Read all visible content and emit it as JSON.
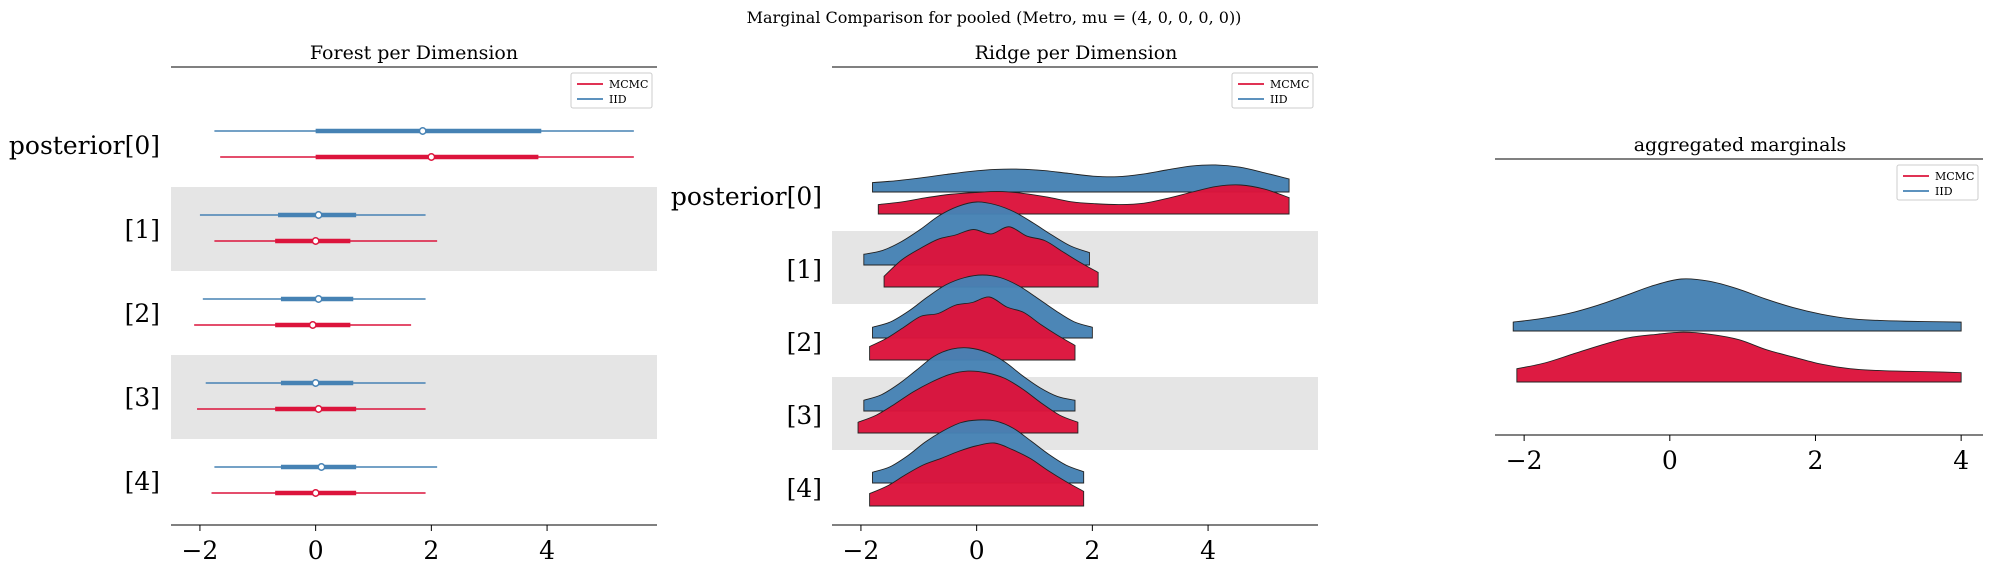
{
  "figure": {
    "suptitle": "Marginal Comparison for pooled (Metro, mu = (4, 0, 0, 0, 0))"
  },
  "colors": {
    "mcmc": "#dc143c",
    "iid": "#4682b4",
    "band": "#e5e5e5",
    "axis": "#000000"
  },
  "chart_data": [
    {
      "type": "forest",
      "title": "Forest per Dimension",
      "xlim": [
        -2.5,
        5.9
      ],
      "xticks": [
        -2,
        0,
        2,
        4
      ],
      "legend": {
        "placement": "top-right",
        "entries": [
          "MCMC",
          "IID"
        ]
      },
      "dimensions": [
        {
          "label": "posterior[0]",
          "IID": {
            "hdi94": [
              -1.75,
              5.5
            ],
            "hdi50": [
              0.0,
              3.9
            ],
            "point": 1.85
          },
          "MCMC": {
            "hdi94": [
              -1.65,
              5.5
            ],
            "hdi50": [
              0.0,
              3.85
            ],
            "point": 2.0
          }
        },
        {
          "label": "[1]",
          "IID": {
            "hdi94": [
              -2.0,
              1.9
            ],
            "hdi50": [
              -0.65,
              0.7
            ],
            "point": 0.05
          },
          "MCMC": {
            "hdi94": [
              -1.75,
              2.1
            ],
            "hdi50": [
              -0.7,
              0.6
            ],
            "point": 0.0
          }
        },
        {
          "label": "[2]",
          "IID": {
            "hdi94": [
              -1.95,
              1.9
            ],
            "hdi50": [
              -0.6,
              0.65
            ],
            "point": 0.05
          },
          "MCMC": {
            "hdi94": [
              -2.1,
              1.65
            ],
            "hdi50": [
              -0.7,
              0.6
            ],
            "point": -0.05
          }
        },
        {
          "label": "[3]",
          "IID": {
            "hdi94": [
              -1.9,
              1.9
            ],
            "hdi50": [
              -0.6,
              0.65
            ],
            "point": 0.0
          },
          "MCMC": {
            "hdi94": [
              -2.05,
              1.9
            ],
            "hdi50": [
              -0.7,
              0.7
            ],
            "point": 0.05
          }
        },
        {
          "label": "[4]",
          "IID": {
            "hdi94": [
              -1.75,
              2.1
            ],
            "hdi50": [
              -0.6,
              0.7
            ],
            "point": 0.1
          },
          "MCMC": {
            "hdi94": [
              -1.8,
              1.9
            ],
            "hdi50": [
              -0.7,
              0.7
            ],
            "point": 0.0
          }
        }
      ]
    },
    {
      "type": "ridge",
      "title": "Ridge per Dimension",
      "xlim": [
        -2.5,
        5.9
      ],
      "xticks": [
        -2,
        0,
        2,
        4
      ],
      "legend": {
        "placement": "top-right",
        "entries": [
          "MCMC",
          "IID"
        ]
      },
      "dimensions": [
        {
          "label": "posterior[0]",
          "IID": {
            "range": [
              -1.8,
              5.4
            ],
            "density": [
              0.05,
              0.12,
              0.22,
              0.34,
              0.45,
              0.52,
              0.53,
              0.48,
              0.38,
              0.28,
              0.26,
              0.35,
              0.5,
              0.64,
              0.68,
              0.6,
              0.4,
              0.18
            ]
          },
          "MCMC": {
            "range": [
              -1.7,
              5.4
            ],
            "density": [
              0.05,
              0.15,
              0.3,
              0.42,
              0.48,
              0.52,
              0.45,
              0.32,
              0.15,
              0.08,
              0.05,
              0.1,
              0.28,
              0.5,
              0.7,
              0.75,
              0.6,
              0.3
            ]
          }
        },
        {
          "label": "[1]",
          "IID": {
            "range": [
              -1.95,
              1.95
            ],
            "density": [
              0.05,
              0.12,
              0.28,
              0.5,
              0.75,
              0.92,
              1.0,
              0.95,
              0.82,
              0.62,
              0.4,
              0.2,
              0.08
            ]
          },
          "MCMC": {
            "range": [
              -1.6,
              2.1
            ],
            "density": [
              0.05,
              0.35,
              0.55,
              0.72,
              0.8,
              0.9,
              0.82,
              0.95,
              0.78,
              0.7,
              0.5,
              0.3,
              0.12
            ]
          }
        },
        {
          "label": "[2]",
          "IID": {
            "range": [
              -1.8,
              2.0
            ],
            "density": [
              0.05,
              0.15,
              0.35,
              0.6,
              0.82,
              0.95,
              1.0,
              0.95,
              0.8,
              0.58,
              0.35,
              0.15,
              0.05
            ]
          },
          "MCMC": {
            "range": [
              -1.85,
              1.7
            ],
            "density": [
              0.1,
              0.25,
              0.45,
              0.65,
              0.7,
              0.85,
              0.9,
              1.0,
              0.82,
              0.72,
              0.5,
              0.3,
              0.12
            ]
          }
        },
        {
          "label": "[3]",
          "IID": {
            "range": [
              -1.95,
              1.7
            ],
            "density": [
              0.05,
              0.15,
              0.35,
              0.6,
              0.85,
              0.98,
              1.0,
              0.92,
              0.75,
              0.5,
              0.28,
              0.12,
              0.05
            ]
          },
          "MCMC": {
            "range": [
              -2.05,
              1.75
            ],
            "density": [
              0.05,
              0.18,
              0.38,
              0.6,
              0.78,
              0.92,
              0.98,
              0.95,
              0.85,
              0.65,
              0.4,
              0.18,
              0.05
            ]
          }
        },
        {
          "label": "[4]",
          "IID": {
            "range": [
              -1.8,
              1.85
            ],
            "density": [
              0.05,
              0.15,
              0.35,
              0.6,
              0.8,
              0.95,
              1.0,
              0.98,
              0.85,
              0.62,
              0.38,
              0.18,
              0.06
            ]
          },
          "MCMC": {
            "range": [
              -1.85,
              1.85
            ],
            "density": [
              0.08,
              0.22,
              0.42,
              0.6,
              0.72,
              0.85,
              0.95,
              1.0,
              0.88,
              0.72,
              0.5,
              0.3,
              0.12
            ]
          }
        }
      ]
    },
    {
      "type": "ridge",
      "title": "aggregated marginals",
      "xlim": [
        -2.4,
        4.3
      ],
      "xticks": [
        -2,
        0,
        2,
        4
      ],
      "legend": {
        "placement": "top-right",
        "entries": [
          "MCMC",
          "IID"
        ]
      },
      "dimensions": [
        {
          "label": "",
          "IID": {
            "range": [
              -2.15,
              4.0
            ],
            "density": [
              0.02,
              0.1,
              0.22,
              0.4,
              0.62,
              0.85,
              1.0,
              0.95,
              0.78,
              0.55,
              0.35,
              0.2,
              0.1,
              0.06,
              0.04,
              0.03,
              0.02
            ]
          },
          "MCMC": {
            "range": [
              -2.1,
              4.0
            ],
            "density": [
              0.12,
              0.25,
              0.45,
              0.65,
              0.82,
              0.9,
              0.95,
              0.9,
              0.78,
              0.55,
              0.38,
              0.22,
              0.12,
              0.08,
              0.06,
              0.05,
              0.03
            ]
          }
        }
      ]
    }
  ]
}
